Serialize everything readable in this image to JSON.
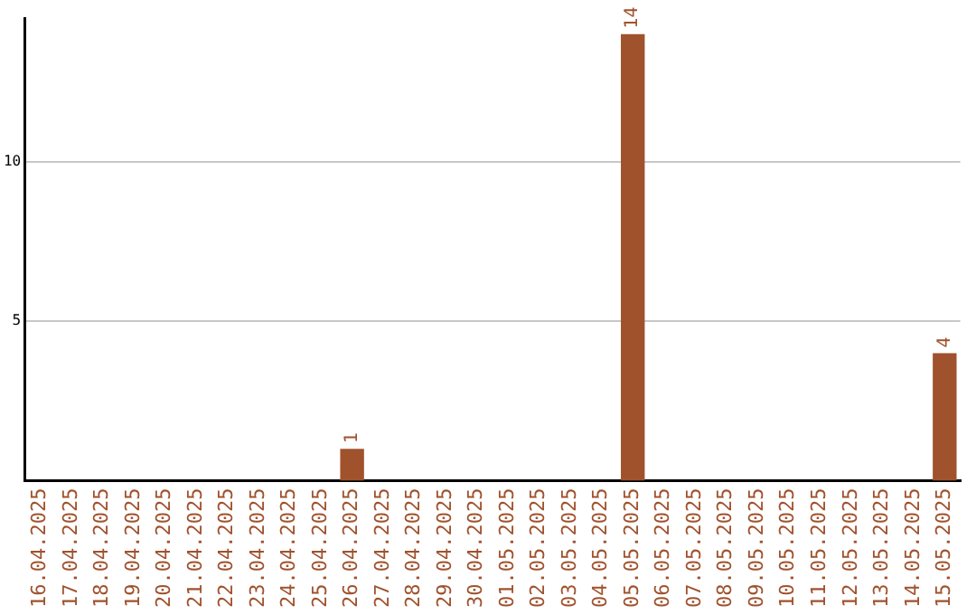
{
  "chart_data": {
    "type": "bar",
    "categories": [
      "16.04.2025",
      "17.04.2025",
      "18.04.2025",
      "19.04.2025",
      "20.04.2025",
      "21.04.2025",
      "22.04.2025",
      "23.04.2025",
      "24.04.2025",
      "25.04.2025",
      "26.04.2025",
      "27.04.2025",
      "28.04.2025",
      "29.04.2025",
      "30.04.2025",
      "01.05.2025",
      "02.05.2025",
      "03.05.2025",
      "04.05.2025",
      "05.05.2025",
      "06.05.2025",
      "07.05.2025",
      "08.05.2025",
      "09.05.2025",
      "10.05.2025",
      "11.05.2025",
      "12.05.2025",
      "13.05.2025",
      "14.05.2025",
      "15.05.2025"
    ],
    "values": [
      0,
      0,
      0,
      0,
      0,
      0,
      0,
      0,
      0,
      0,
      1,
      0,
      0,
      0,
      0,
      0,
      0,
      0,
      0,
      14,
      0,
      0,
      0,
      0,
      0,
      0,
      0,
      0,
      0,
      4
    ],
    "value_labels": [
      null,
      null,
      null,
      null,
      null,
      null,
      null,
      null,
      null,
      null,
      "1",
      null,
      null,
      null,
      null,
      null,
      null,
      null,
      null,
      "14",
      null,
      null,
      null,
      null,
      null,
      null,
      null,
      null,
      null,
      "4"
    ],
    "color": "#a0522d",
    "ylim": [
      0,
      14.5
    ],
    "yticks": [
      5,
      10
    ],
    "grid": "y",
    "legend": false
  }
}
